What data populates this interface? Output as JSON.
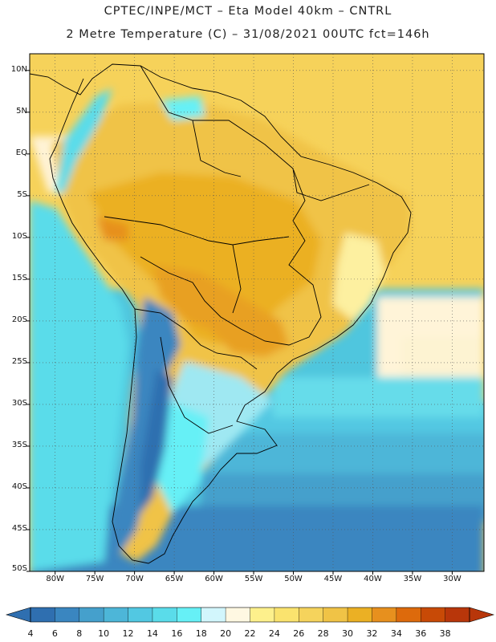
{
  "title": {
    "line1": "CPTEC/INPE/MCT –  Eta Model 40km – CNTRL",
    "line2": "2 Metre Temperature (C) – 31/08/2021 00UTC fct=146h"
  },
  "map": {
    "lat_labels": [
      "10N",
      "5N",
      "EQ",
      "5S",
      "10S",
      "15S",
      "20S",
      "25S",
      "30S",
      "35S",
      "40S",
      "45S",
      "50S"
    ],
    "lon_labels": [
      "80W",
      "75W",
      "70W",
      "65W",
      "60W",
      "55W",
      "50W",
      "45W",
      "40W",
      "35W",
      "30W"
    ],
    "lat_values": [
      10,
      5,
      0,
      -5,
      -10,
      -15,
      -20,
      -25,
      -30,
      -35,
      -40,
      -45,
      -50
    ],
    "lon_values": [
      -80,
      -75,
      -70,
      -65,
      -60,
      -55,
      -50,
      -45,
      -40,
      -35,
      -30
    ],
    "extent": {
      "lon_min": -83.2,
      "lon_max": -26.0,
      "lat_min": -50.0,
      "lat_max": 12.0
    }
  },
  "colorbar": {
    "labels": [
      "4",
      "6",
      "8",
      "10",
      "12",
      "14",
      "16",
      "18",
      "20",
      "22",
      "24",
      "26",
      "28",
      "30",
      "32",
      "34",
      "36",
      "38"
    ],
    "colors": [
      "#2f6fb0",
      "#3a86c0",
      "#45a0cc",
      "#4db6d8",
      "#52c8e2",
      "#5adcea",
      "#66f0f6",
      "#d2f6fc",
      "#fff8e2",
      "#fdf08c",
      "#fae36e",
      "#f5d35c",
      "#f0c346",
      "#ebb024",
      "#e7901e",
      "#dd6a0c",
      "#c84a06",
      "#b8360a"
    ],
    "under_color": "#2f6fb0",
    "over_color": "#b8360a"
  }
}
